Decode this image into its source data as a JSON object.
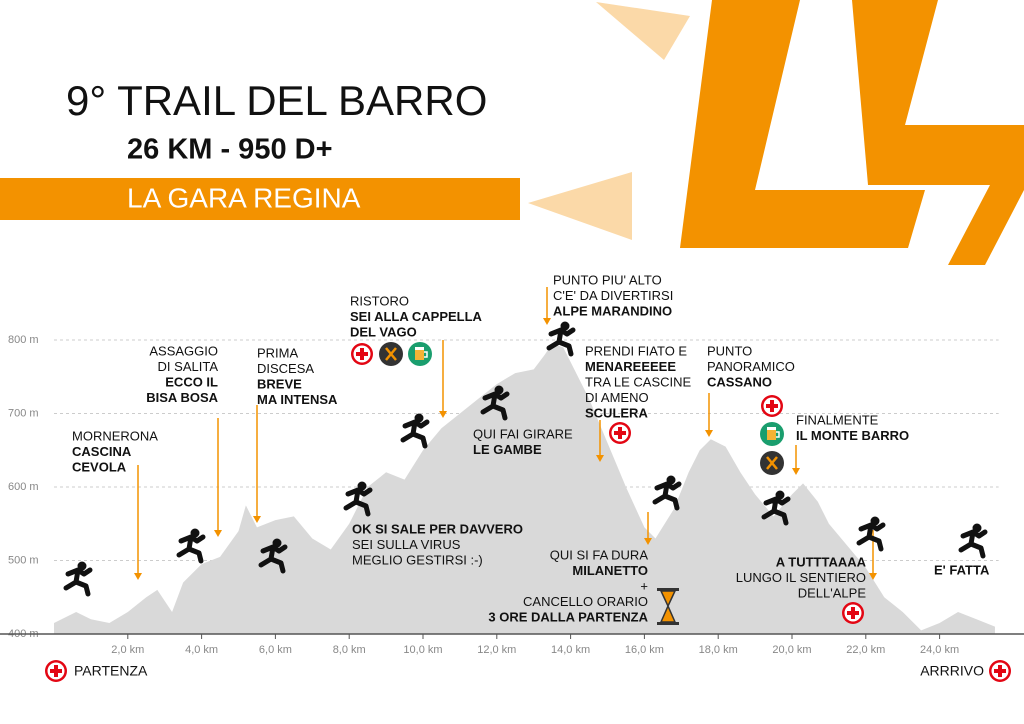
{
  "chart_data": {
    "type": "area",
    "title": "9° TRAIL DEL BARRO",
    "subtitle": "26 KM - 950 D+",
    "tagline": "LA GARA REGINA",
    "color": "#d9d9d9",
    "accent": "#f39200",
    "x": [
      0,
      0.6,
      1.0,
      1.5,
      2.0,
      2.5,
      2.8,
      3.2,
      3.5,
      4.0,
      4.5,
      5.0,
      5.2,
      5.5,
      6.0,
      6.5,
      7.0,
      7.5,
      8.0,
      8.5,
      9.0,
      9.5,
      10.0,
      10.5,
      11.0,
      11.5,
      12.0,
      12.5,
      13.0,
      13.3,
      13.5,
      13.8,
      14.0,
      14.5,
      15.0,
      15.5,
      16.0,
      16.3,
      16.8,
      17.2,
      17.5,
      17.8,
      18.2,
      18.6,
      19.0,
      19.5,
      20.0,
      20.3,
      20.7,
      21.0,
      21.5,
      22.0,
      22.5,
      23.0,
      23.5,
      24.0,
      24.5,
      25.0,
      25.5
    ],
    "values": [
      415,
      430,
      420,
      415,
      430,
      450,
      460,
      430,
      470,
      495,
      505,
      540,
      575,
      545,
      555,
      560,
      530,
      515,
      550,
      600,
      620,
      610,
      650,
      680,
      700,
      720,
      740,
      755,
      760,
      780,
      795,
      790,
      770,
      720,
      660,
      600,
      545,
      530,
      570,
      620,
      650,
      665,
      655,
      620,
      590,
      560,
      590,
      605,
      580,
      550,
      520,
      490,
      450,
      430,
      405,
      415,
      430,
      420,
      410
    ],
    "xlim": [
      0,
      25.6
    ],
    "ylim": [
      400,
      800
    ],
    "xticks": [
      {
        "value": 2,
        "label": "2,0 km"
      },
      {
        "value": 4,
        "label": "4,0 km"
      },
      {
        "value": 6,
        "label": "6,0 km"
      },
      {
        "value": 8,
        "label": "8,0 km"
      },
      {
        "value": 10,
        "label": "10,0 km"
      },
      {
        "value": 12,
        "label": "12,0 km"
      },
      {
        "value": 14,
        "label": "14,0 km"
      },
      {
        "value": 16,
        "label": "16,0 km"
      },
      {
        "value": 18,
        "label": "18,0 km"
      },
      {
        "value": 20,
        "label": "20,0 km"
      },
      {
        "value": 22,
        "label": "22,0 km"
      },
      {
        "value": 24,
        "label": "24,0 km"
      }
    ],
    "yticks": [
      {
        "value": 400,
        "label": "400 m"
      },
      {
        "value": 500,
        "label": "500 m"
      },
      {
        "value": 600,
        "label": "600 m"
      },
      {
        "value": 700,
        "label": "700 m"
      },
      {
        "value": 800,
        "label": "800 m"
      }
    ],
    "grid": true,
    "start_label": "PARTENZA",
    "end_label": "ARRRIVO",
    "annotations": [
      {
        "lines": [
          {
            "text": "MORNERONA",
            "bold": false
          },
          {
            "text": "CASCINA",
            "bold": true
          },
          {
            "text": "CEVOLA",
            "bold": true
          }
        ]
      },
      {
        "lines": [
          {
            "text": "ASSAGGIO",
            "bold": false
          },
          {
            "text": "DI SALITA",
            "bold": false
          },
          {
            "text": "ECCO IL",
            "bold": true
          },
          {
            "text": "BISA BOSA",
            "bold": true
          }
        ]
      },
      {
        "lines": [
          {
            "text": "PRIMA",
            "bold": false
          },
          {
            "text": "DISCESA",
            "bold": false
          },
          {
            "text": "BREVE",
            "bold": true
          },
          {
            "text": "MA INTENSA",
            "bold": true
          }
        ]
      },
      {
        "lines": [
          {
            "text": "RISTORO",
            "bold": false
          },
          {
            "text": "SEI ALLA CAPPELLA",
            "bold": true
          },
          {
            "text": "DEL VAGO",
            "bold": true
          }
        ]
      },
      {
        "lines": [
          {
            "text": "PUNTO PIU' ALTO",
            "bold": false
          },
          {
            "text": "C'E' DA DIVERTIRSI",
            "bold": false
          },
          {
            "text": "ALPE MARANDINO",
            "bold": true
          }
        ]
      },
      {
        "lines": [
          {
            "text": "QUI FAI GIRARE",
            "bold": false
          },
          {
            "text": "LE GAMBE",
            "bold": true
          }
        ]
      },
      {
        "lines": [
          {
            "text": "PRENDI FIATO E",
            "bold": false
          },
          {
            "text": "MENAREEEEE",
            "bold": true
          },
          {
            "text": "TRA LE CASCINE",
            "bold": false
          },
          {
            "text": "DI AMENO",
            "bold": false
          },
          {
            "text": "SCULERA",
            "bold": true
          }
        ]
      },
      {
        "lines": [
          {
            "text": "PUNTO",
            "bold": false
          },
          {
            "text": "PANORAMICO",
            "bold": false
          },
          {
            "text": "CASSANO",
            "bold": true
          }
        ]
      },
      {
        "lines": [
          {
            "text": "FINALMENTE",
            "bold": false
          },
          {
            "text": "IL MONTE BARRO",
            "bold": true
          }
        ]
      },
      {
        "lines": [
          {
            "text": "OK SI SALE PER DAVVERO",
            "bold": true
          },
          {
            "text": "SEI SULLA VIRUS",
            "bold": false
          },
          {
            "text": "MEGLIO GESTIRSI :-)",
            "bold": false
          }
        ]
      },
      {
        "lines": [
          {
            "text": "QUI SI FA DURA",
            "bold": false
          },
          {
            "text": "MILANETTO",
            "bold": true
          },
          {
            "text": "+",
            "bold": false
          },
          {
            "text": "CANCELLO ORARIO",
            "bold": false
          },
          {
            "text": "3 ORE DALLA PARTENZA",
            "bold": true
          }
        ]
      },
      {
        "lines": [
          {
            "text": "A TUTTTAAAA",
            "bold": true
          },
          {
            "text": "LUNGO IL SENTIERO",
            "bold": false
          },
          {
            "text": "DELL'ALPE",
            "bold": false
          }
        ]
      },
      {
        "lines": [
          {
            "text": "E' FATTA",
            "bold": true
          }
        ]
      }
    ]
  }
}
